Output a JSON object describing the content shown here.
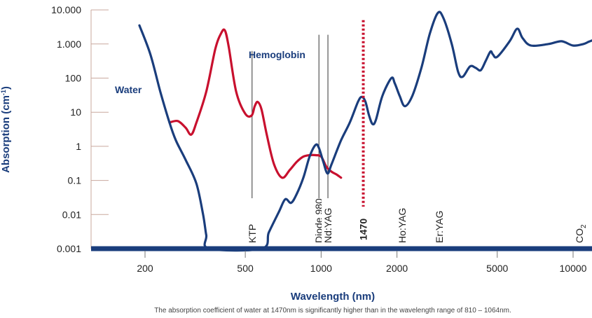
{
  "chart_data": {
    "type": "line",
    "xscale": "log",
    "yscale": "log",
    "xlabel": "Wavelength (nm)",
    "ylabel_main": "Absorption (cm",
    "ylabel_exp": "-1",
    "ylabel_close": ")",
    "caption": "The absorption coefficient of water at 1470nm is significantly higher than in the wavelength range of 810 – 1064nm.",
    "xlim": [
      120,
      14000
    ],
    "ylim": [
      0.001,
      10000
    ],
    "x_ticks": [
      {
        "value": 200,
        "label": "200"
      },
      {
        "value": 500,
        "label": "500"
      },
      {
        "value": 1000,
        "label": "1000"
      },
      {
        "value": 2000,
        "label": "2000"
      },
      {
        "value": 5000,
        "label": "5000"
      },
      {
        "value": 10000,
        "label": "10000"
      }
    ],
    "y_ticks": [
      {
        "value": 0.001,
        "label": "0.001"
      },
      {
        "value": 0.01,
        "label": "0.01"
      },
      {
        "value": 0.1,
        "label": "0.1"
      },
      {
        "value": 1,
        "label": "1"
      },
      {
        "value": 10,
        "label": "10"
      },
      {
        "value": 100,
        "label": "100"
      },
      {
        "value": 1000,
        "label": "1.000"
      },
      {
        "value": 10000,
        "label": "10.000"
      }
    ],
    "colors": {
      "water": "#1a3d7c",
      "hemoglobin": "#c8102e",
      "marker": "#c8102e",
      "axis": "#1a3d7c",
      "grid": "#c9a89e"
    },
    "series": [
      {
        "name": "Water",
        "key": "water",
        "points": [
          [
            190,
            3500
          ],
          [
            210,
            500
          ],
          [
            230,
            40
          ],
          [
            250,
            5
          ],
          [
            265,
            1.5
          ],
          [
            290,
            0.4
          ],
          [
            320,
            0.08
          ],
          [
            340,
            0.01
          ],
          [
            350,
            0.0025
          ],
          [
            360,
            0.001
          ],
          [
            580,
            0.001
          ],
          [
            620,
            0.003
          ],
          [
            680,
            0.012
          ],
          [
            720,
            0.028
          ],
          [
            760,
            0.022
          ],
          [
            800,
            0.04
          ],
          [
            850,
            0.12
          ],
          [
            900,
            0.5
          ],
          [
            950,
            1.1
          ],
          [
            980,
            0.9
          ],
          [
            1020,
            0.35
          ],
          [
            1060,
            0.16
          ],
          [
            1100,
            0.3
          ],
          [
            1200,
            1.5
          ],
          [
            1300,
            5
          ],
          [
            1400,
            20
          ],
          [
            1450,
            28
          ],
          [
            1500,
            20
          ],
          [
            1550,
            8
          ],
          [
            1600,
            4.5
          ],
          [
            1650,
            6
          ],
          [
            1750,
            30
          ],
          [
            1900,
            100
          ],
          [
            1960,
            70
          ],
          [
            2050,
            30
          ],
          [
            2150,
            15
          ],
          [
            2300,
            30
          ],
          [
            2500,
            200
          ],
          [
            2700,
            2000
          ],
          [
            2900,
            8000
          ],
          [
            3050,
            6000
          ],
          [
            3300,
            1000
          ],
          [
            3500,
            150
          ],
          [
            3650,
            110
          ],
          [
            3900,
            220
          ],
          [
            4100,
            200
          ],
          [
            4300,
            170
          ],
          [
            4500,
            320
          ],
          [
            4700,
            600
          ],
          [
            4800,
            500
          ],
          [
            5000,
            420
          ],
          [
            5600,
            1200
          ],
          [
            6000,
            2800
          ],
          [
            6300,
            1500
          ],
          [
            6800,
            900
          ],
          [
            8000,
            1000
          ],
          [
            9000,
            1200
          ],
          [
            10000,
            900
          ],
          [
            11000,
            1000
          ],
          [
            11500,
            1150
          ],
          [
            12000,
            1300
          ]
        ]
      },
      {
        "name": "Hemoglobin",
        "key": "hemoglobin",
        "points": [
          [
            250,
            5
          ],
          [
            270,
            5.5
          ],
          [
            290,
            3.5
          ],
          [
            305,
            2.2
          ],
          [
            320,
            5
          ],
          [
            350,
            40
          ],
          [
            380,
            700
          ],
          [
            400,
            2000
          ],
          [
            415,
            2500
          ],
          [
            430,
            800
          ],
          [
            460,
            40
          ],
          [
            500,
            9
          ],
          [
            530,
            8
          ],
          [
            545,
            15
          ],
          [
            560,
            20
          ],
          [
            580,
            12
          ],
          [
            610,
            2
          ],
          [
            650,
            0.3
          ],
          [
            700,
            0.12
          ],
          [
            750,
            0.2
          ],
          [
            800,
            0.35
          ],
          [
            850,
            0.5
          ],
          [
            900,
            0.55
          ],
          [
            950,
            0.55
          ],
          [
            1000,
            0.5
          ],
          [
            1050,
            0.25
          ],
          [
            1100,
            0.18
          ],
          [
            1150,
            0.15
          ],
          [
            1200,
            0.12
          ]
        ]
      }
    ],
    "series_labels": [
      {
        "key": "water",
        "text": "Water"
      },
      {
        "key": "hemoglobin",
        "text": "Hemoglobin"
      }
    ],
    "wavelength_markers": [
      {
        "name": "KTP",
        "value": 532,
        "label": "KTP",
        "line_top_y": 1000
      },
      {
        "name": "Diode 980",
        "value": 980,
        "label": "Diode 980",
        "line_top_y": 3000
      },
      {
        "name": "Nd:YAG",
        "value": 1064,
        "label": "Nd:YAG",
        "line_top_y": 3000
      }
    ],
    "free_labels": [
      {
        "name": "Ho:YAG",
        "value": 2100,
        "label": "Ho:YAG"
      },
      {
        "name": "Er:YAG",
        "value": 2940,
        "label": "Er:YAG"
      }
    ],
    "highlight_marker": {
      "value": 1470,
      "label": "1470"
    },
    "co2_label": {
      "value": 10600,
      "main": "CO",
      "sub": "2"
    }
  }
}
